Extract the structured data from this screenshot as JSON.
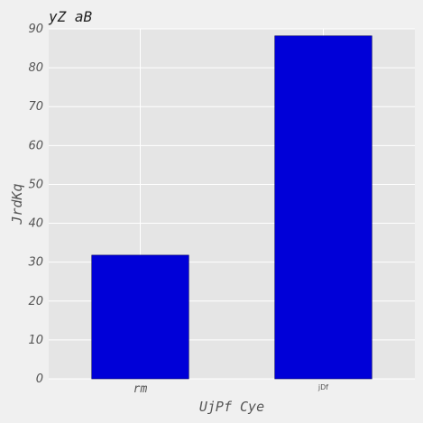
{
  "chart_data": {
    "type": "bar",
    "title": "yZ aB",
    "xlabel": "UjPf Cye",
    "ylabel": "JrdKq",
    "categories": [
      "rm",
      "jDf"
    ],
    "values": [
      31.8,
      88.2
    ],
    "ylim": [
      0,
      90
    ],
    "yticks": [
      "0",
      "10",
      "20",
      "30",
      "40",
      "50",
      "60",
      "70",
      "80",
      "90"
    ],
    "grid": true,
    "bar_color": "#0000d8",
    "plot_background": "#e5e5e5",
    "grid_color": "#ffffff"
  }
}
